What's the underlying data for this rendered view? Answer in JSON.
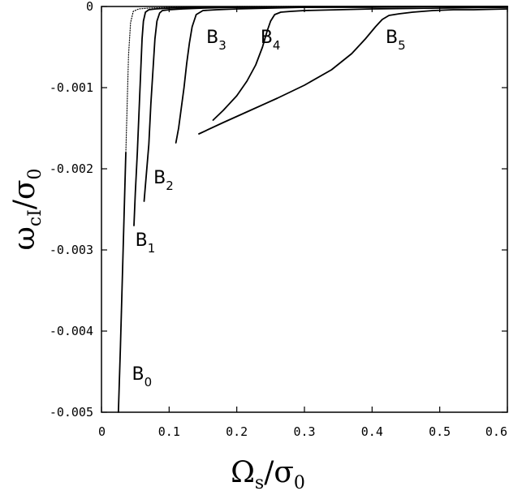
{
  "chart_data": {
    "type": "line",
    "xlim": [
      0,
      0.6
    ],
    "ylim": [
      -0.005,
      0
    ],
    "xticks": [
      "0",
      "0.1",
      "0.2",
      "0.3",
      "0.4",
      "0.5",
      "0.6"
    ],
    "xtick_values": [
      0,
      0.1,
      0.2,
      0.3,
      0.4,
      0.5,
      0.6
    ],
    "yticks": [
      "0",
      "-0.001",
      "-0.002",
      "-0.003",
      "-0.004",
      "-0.005"
    ],
    "ytick_values": [
      0,
      -0.001,
      -0.002,
      -0.003,
      -0.004,
      -0.005
    ],
    "xlabel": {
      "main": "Ω",
      "sub": "s",
      "tail": "/σ",
      "tail_sub": "0"
    },
    "ylabel": {
      "main": "ω",
      "sub": "cI",
      "tail": "/σ",
      "tail_sub": "0"
    },
    "grid": false,
    "series": [
      {
        "label": "B",
        "label_sub": "0",
        "style": "solid-dotted",
        "x": [
          0.025,
          0.028,
          0.03,
          0.032,
          0.034,
          0.036,
          0.038,
          0.04,
          0.043,
          0.047,
          0.055,
          0.07,
          0.1,
          0.15,
          0.2,
          0.3,
          0.4,
          0.5,
          0.6
        ],
        "y": [
          -0.005,
          -0.0042,
          -0.0036,
          -0.003,
          -0.0024,
          -0.0018,
          -0.0012,
          -0.0006,
          -0.0002,
          -6e-05,
          -3e-05,
          -2e-05,
          -1e-05,
          -1e-05,
          0,
          0,
          0,
          0,
          0
        ]
      },
      {
        "label": "B",
        "label_sub": "1",
        "style": "solid",
        "x": [
          0.048,
          0.05,
          0.053,
          0.056,
          0.058,
          0.06,
          0.062,
          0.065,
          0.07,
          0.08,
          0.1,
          0.15,
          0.2,
          0.3,
          0.4,
          0.5,
          0.6
        ],
        "y": [
          -0.0027,
          -0.0023,
          -0.0018,
          -0.0012,
          -0.0008,
          -0.0004,
          -0.00018,
          -7e-05,
          -4e-05,
          -3e-05,
          -2e-05,
          -1e-05,
          -1e-05,
          0,
          0,
          0,
          0
        ]
      },
      {
        "label": "B",
        "label_sub": "2",
        "style": "solid",
        "x": [
          0.063,
          0.066,
          0.07,
          0.073,
          0.076,
          0.079,
          0.082,
          0.086,
          0.09,
          0.1,
          0.12,
          0.15,
          0.2,
          0.3,
          0.4,
          0.5,
          0.6
        ],
        "y": [
          -0.0024,
          -0.0021,
          -0.0017,
          -0.0012,
          -0.0008,
          -0.0004,
          -0.00018,
          -8e-05,
          -5e-05,
          -4e-05,
          -3e-05,
          -2e-05,
          -1e-05,
          -1e-05,
          0,
          0,
          0
        ]
      },
      {
        "label": "B",
        "label_sub": "3",
        "style": "solid",
        "x": [
          0.11,
          0.114,
          0.118,
          0.122,
          0.126,
          0.13,
          0.134,
          0.14,
          0.15,
          0.17,
          0.2,
          0.25,
          0.3,
          0.4,
          0.5,
          0.6
        ],
        "y": [
          -0.00168,
          -0.0015,
          -0.00125,
          -0.001,
          -0.0007,
          -0.00045,
          -0.00025,
          -0.0001,
          -5e-05,
          -4e-05,
          -3e-05,
          -2e-05,
          -1e-05,
          -1e-05,
          0,
          0
        ]
      },
      {
        "label": "B",
        "label_sub": "4",
        "style": "solid",
        "x": [
          0.165,
          0.18,
          0.2,
          0.215,
          0.228,
          0.238,
          0.245,
          0.25,
          0.256,
          0.265,
          0.28,
          0.3,
          0.35,
          0.4,
          0.5,
          0.6
        ],
        "y": [
          -0.0014,
          -0.00128,
          -0.0011,
          -0.00092,
          -0.00072,
          -0.0005,
          -0.0003,
          -0.00018,
          -0.0001,
          -7e-05,
          -6e-05,
          -5e-05,
          -4e-05,
          -3e-05,
          -2e-05,
          -1e-05
        ]
      },
      {
        "label": "B",
        "label_sub": "5",
        "style": "solid",
        "x": [
          0.144,
          0.18,
          0.22,
          0.26,
          0.3,
          0.34,
          0.37,
          0.39,
          0.405,
          0.415,
          0.425,
          0.44,
          0.46,
          0.49,
          0.52,
          0.55,
          0.6
        ],
        "y": [
          -0.00157,
          -0.00143,
          -0.00128,
          -0.00113,
          -0.00097,
          -0.00078,
          -0.00058,
          -0.0004,
          -0.00025,
          -0.00016,
          -0.00011,
          -9e-05,
          -7e-05,
          -5e-05,
          -4e-05,
          -4e-05,
          -3e-05
        ]
      }
    ],
    "annotations": [
      {
        "main": "B",
        "sub": "0",
        "x": 0.045,
        "y": -0.0046
      },
      {
        "main": "B",
        "sub": "1",
        "x": 0.05,
        "y": -0.00295
      },
      {
        "main": "B",
        "sub": "2",
        "x": 0.077,
        "y": -0.00218
      },
      {
        "main": "B",
        "sub": "3",
        "x": 0.155,
        "y": -0.00045
      },
      {
        "main": "B",
        "sub": "4",
        "x": 0.235,
        "y": -0.00045
      },
      {
        "main": "B",
        "sub": "5",
        "x": 0.42,
        "y": -0.00045
      }
    ]
  }
}
